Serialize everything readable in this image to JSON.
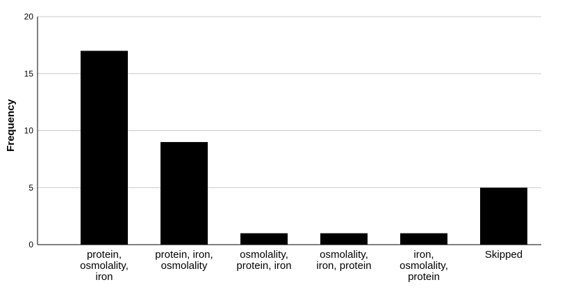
{
  "chart_data": {
    "type": "bar",
    "title": "",
    "xlabel": "",
    "ylabel": "Frequency",
    "ylim": [
      0,
      20
    ],
    "yticks": [
      0,
      5,
      10,
      15,
      20
    ],
    "grid": true,
    "categories": [
      [
        "protein,",
        "osmolality,",
        "iron"
      ],
      [
        "protein, iron,",
        "osmolality"
      ],
      [
        "osmolality,",
        "protein, iron"
      ],
      [
        "osmolality,",
        "iron, protein"
      ],
      [
        "iron,",
        "osmolality,",
        "protein"
      ],
      [
        "Skipped"
      ]
    ],
    "values": [
      17,
      9,
      1,
      1,
      1,
      5
    ],
    "colors": {
      "bar": "#000000",
      "grid": "#c8c8c8",
      "axis": "#000000"
    }
  }
}
